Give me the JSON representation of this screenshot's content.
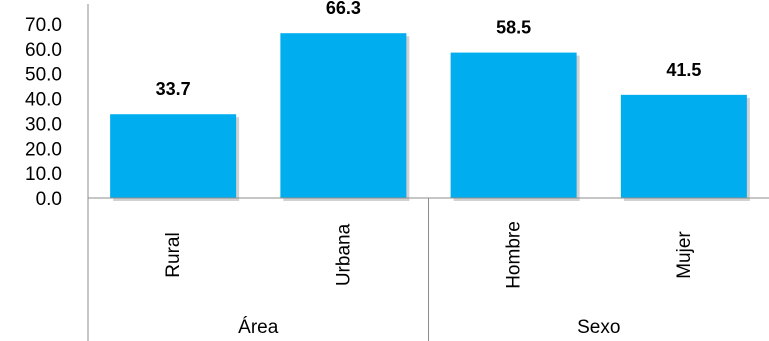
{
  "chart_data": {
    "type": "bar",
    "categories": [
      "Rural",
      "Urbana",
      "Hombre",
      "Mujer"
    ],
    "groups": [
      {
        "label": "Área",
        "categories": [
          "Rural",
          "Urbana"
        ]
      },
      {
        "label": "Sexo",
        "categories": [
          "Hombre",
          "Mujer"
        ]
      }
    ],
    "values": [
      33.7,
      66.3,
      58.5,
      41.5
    ],
    "data_labels": [
      "33.7",
      "66.3",
      "58.5",
      "41.5"
    ],
    "y_ticks": [
      "0.0",
      "10.0",
      "20.0",
      "30.0",
      "40.0",
      "50.0",
      "60.0",
      "70.0"
    ],
    "ylim": [
      0,
      70
    ],
    "grid": false,
    "bar_color": "#00AEEF",
    "title": "",
    "xlabel": "",
    "ylabel": ""
  }
}
